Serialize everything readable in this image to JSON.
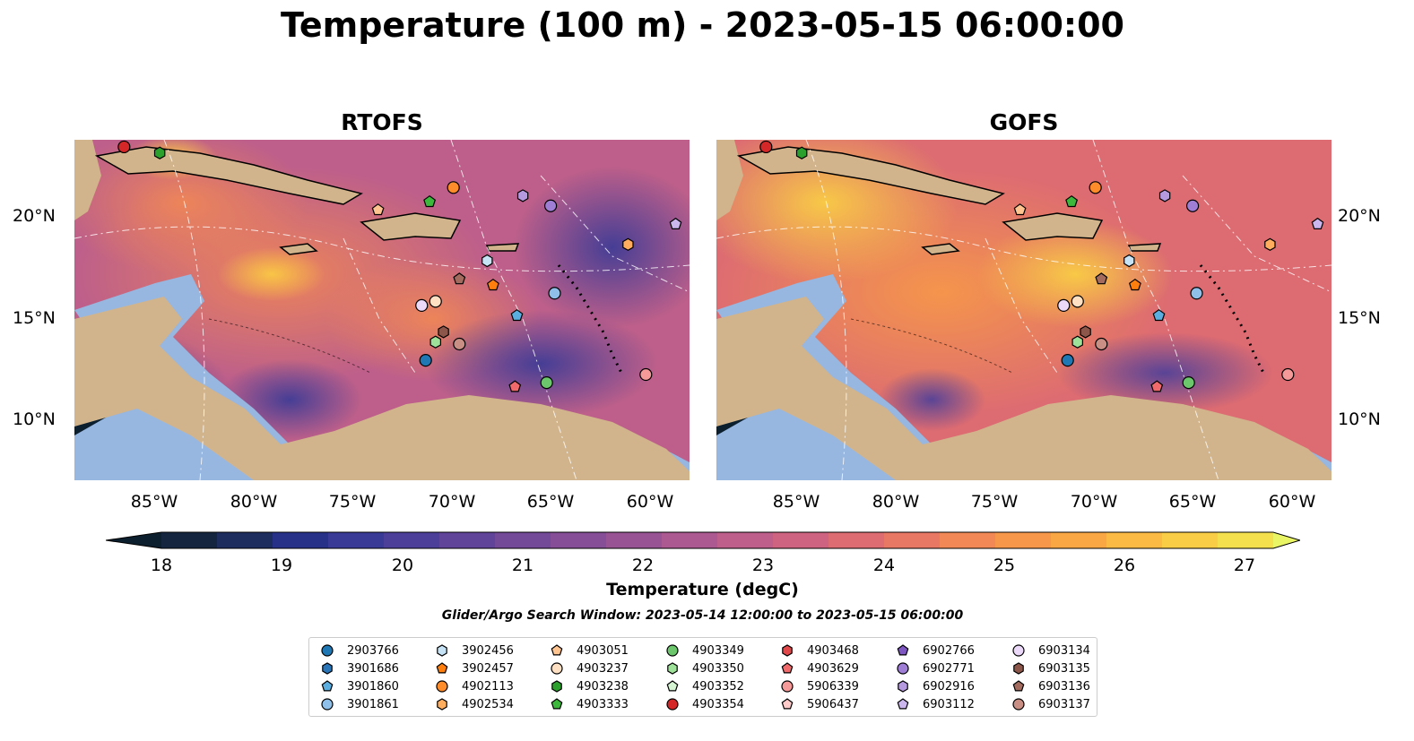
{
  "title": "Temperature (100 m) - 2023-05-15 06:00:00",
  "panels": [
    {
      "title": "RTOFS"
    },
    {
      "title": "GOFS"
    }
  ],
  "lat_labels": [
    "20°N",
    "15°N",
    "10°N"
  ],
  "lon_labels": [
    "85°W",
    "80°W",
    "75°W",
    "70°W",
    "65°W",
    "60°W"
  ],
  "map_extent": {
    "lon": [
      -89,
      -58
    ],
    "lat": [
      7,
      23.75
    ]
  },
  "colorbar": {
    "label": "Temperature (degC)",
    "ticks": [
      "18",
      "19",
      "20",
      "21",
      "22",
      "23",
      "24",
      "25",
      "26",
      "27"
    ],
    "range": [
      18,
      27
    ],
    "colors": [
      "#0b1f2e",
      "#14263f",
      "#1d2d5e",
      "#273187",
      "#383a96",
      "#4b3f9a",
      "#5f4499",
      "#724a97",
      "#854e96",
      "#985394",
      "#ab5990",
      "#bd5f8a",
      "#cd6380",
      "#dc6b72",
      "#e87863",
      "#f18855",
      "#f6974a",
      "#f9a744",
      "#fbba43",
      "#f9cd45",
      "#f3e04c",
      "#e9f564"
    ]
  },
  "search_window": "Glider/Argo Search Window: 2023-05-14 12:00:00 to 2023-05-15 06:00:00",
  "colors": {
    "land": "#d2b48c",
    "shelf": "#97b6e0",
    "warm": "#f6a44b",
    "mid": "#a55a92",
    "cool": "#3b3a95",
    "deep": "#0b1f2e"
  },
  "legend": [
    {
      "id": "2903766",
      "marker": "circle",
      "color": "#1f77b4"
    },
    {
      "id": "3901686",
      "marker": "hexagon",
      "color": "#2a75b8"
    },
    {
      "id": "3901860",
      "marker": "pentagon",
      "color": "#5aaee0"
    },
    {
      "id": "3901861",
      "marker": "circle",
      "color": "#8ec0ea"
    },
    {
      "id": "3902456",
      "marker": "hexagon",
      "color": "#c6e2f5"
    },
    {
      "id": "3902457",
      "marker": "pentagon",
      "color": "#ff7f0e"
    },
    {
      "id": "4902113",
      "marker": "circle",
      "color": "#ff8c2a"
    },
    {
      "id": "4902534",
      "marker": "hexagon",
      "color": "#ffae60"
    },
    {
      "id": "4903051",
      "marker": "pentagon",
      "color": "#ffc48f"
    },
    {
      "id": "4903237",
      "marker": "circle",
      "color": "#ffe0c2"
    },
    {
      "id": "4903238",
      "marker": "hexagon",
      "color": "#2ca02c"
    },
    {
      "id": "4903333",
      "marker": "pentagon",
      "color": "#3cb83c"
    },
    {
      "id": "4903349",
      "marker": "circle",
      "color": "#6cc76c"
    },
    {
      "id": "4903350",
      "marker": "hexagon",
      "color": "#9ee29a"
    },
    {
      "id": "4903352",
      "marker": "pentagon",
      "color": "#d6f5d2"
    },
    {
      "id": "4903354",
      "marker": "circle",
      "color": "#d62728"
    },
    {
      "id": "4903468",
      "marker": "hexagon",
      "color": "#e0484a"
    },
    {
      "id": "4903629",
      "marker": "pentagon",
      "color": "#f06a6b"
    },
    {
      "id": "5906339",
      "marker": "circle",
      "color": "#f59a99"
    },
    {
      "id": "5906437",
      "marker": "pentagon",
      "color": "#ffcaca"
    },
    {
      "id": "6902766",
      "marker": "pentagon",
      "color": "#7e57c2"
    },
    {
      "id": "6902771",
      "marker": "circle",
      "color": "#9f7fd6"
    },
    {
      "id": "6902916",
      "marker": "hexagon",
      "color": "#b69ae0"
    },
    {
      "id": "6903112",
      "marker": "pentagon",
      "color": "#cbb6ee"
    },
    {
      "id": "6903134",
      "marker": "circle",
      "color": "#ecd8f8"
    },
    {
      "id": "6903135",
      "marker": "hexagon",
      "color": "#8c564b"
    },
    {
      "id": "6903136",
      "marker": "pentagon",
      "color": "#a26b5e"
    },
    {
      "id": "6903137",
      "marker": "circle",
      "color": "#c98f84"
    }
  ],
  "floats": [
    {
      "id": "4903354",
      "lon": -86.5,
      "lat": 23.4
    },
    {
      "id": "4903238",
      "lon": -84.7,
      "lat": 23.1
    },
    {
      "id": "4902113",
      "lon": -69.9,
      "lat": 21.4
    },
    {
      "id": "6902916",
      "lon": -66.4,
      "lat": 21.0
    },
    {
      "id": "6902771",
      "lon": -65.0,
      "lat": 20.5
    },
    {
      "id": "4903051",
      "lon": -73.7,
      "lat": 20.3
    },
    {
      "id": "4903333",
      "lon": -71.1,
      "lat": 20.7
    },
    {
      "id": "6903112",
      "lon": -58.7,
      "lat": 19.6
    },
    {
      "id": "4902534",
      "lon": -61.1,
      "lat": 18.6
    },
    {
      "id": "3902456",
      "lon": -68.2,
      "lat": 17.8
    },
    {
      "id": "6903136",
      "lon": -69.6,
      "lat": 16.9
    },
    {
      "id": "3902457",
      "lon": -67.9,
      "lat": 16.6
    },
    {
      "id": "3901861",
      "lon": -64.8,
      "lat": 16.2
    },
    {
      "id": "4903237",
      "lon": -70.8,
      "lat": 15.8
    },
    {
      "id": "6903134",
      "lon": -71.5,
      "lat": 15.6
    },
    {
      "id": "3901860",
      "lon": -66.7,
      "lat": 15.1
    },
    {
      "id": "6903135",
      "lon": -70.4,
      "lat": 14.3
    },
    {
      "id": "4903350",
      "lon": -70.8,
      "lat": 13.8
    },
    {
      "id": "6903137",
      "lon": -69.6,
      "lat": 13.7
    },
    {
      "id": "2903766",
      "lon": -71.3,
      "lat": 12.9
    },
    {
      "id": "4903349",
      "lon": -65.2,
      "lat": 11.8
    },
    {
      "id": "4903629",
      "lon": -66.8,
      "lat": 11.6
    },
    {
      "id": "5906339",
      "lon": -60.2,
      "lat": 12.2
    }
  ]
}
